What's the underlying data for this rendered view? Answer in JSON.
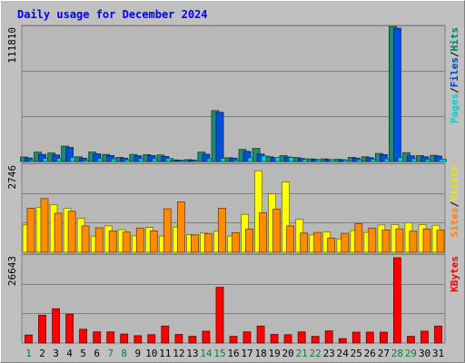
{
  "chart_data": {
    "type": "bar",
    "title": "Daily usage for December 2024",
    "categories": [
      "1",
      "2",
      "3",
      "4",
      "5",
      "6",
      "7",
      "8",
      "9",
      "10",
      "11",
      "12",
      "13",
      "14",
      "15",
      "16",
      "17",
      "18",
      "19",
      "20",
      "21",
      "22",
      "23",
      "24",
      "25",
      "26",
      "27",
      "28",
      "29",
      "30",
      "31"
    ],
    "weekend_days": [
      "1",
      "7",
      "8",
      "14",
      "15",
      "21",
      "22",
      "28",
      "29"
    ],
    "panels": [
      {
        "id": "hits-panel",
        "max_label": "111810",
        "ylim": [
          0,
          111810
        ],
        "legend": [
          {
            "text": "Pages",
            "color": "#00d0d0"
          },
          {
            "text": "/",
            "color": "#000000"
          },
          {
            "text": "Files",
            "color": "#0040c0"
          },
          {
            "text": "/",
            "color": "#000000"
          },
          {
            "text": "Hits",
            "color": "#008060"
          }
        ],
        "series": [
          {
            "name": "Hits",
            "color": "#1e8c6e",
            "values": [
              3800,
              8000,
              7200,
              13000,
              4000,
              8000,
              6000,
              3500,
              6000,
              5800,
              5500,
              1400,
              1600,
              8000,
              43000,
              3200,
              10200,
              11000,
              4000,
              5000,
              3200,
              2200,
              2200,
              1800,
              3500,
              4000,
              6800,
              114000,
              7500,
              5000,
              5200
            ]
          },
          {
            "name": "Files",
            "color": "#0050e0",
            "values": [
              3000,
              6000,
              5500,
              11800,
              2800,
              6500,
              5000,
              2800,
              4800,
              5000,
              4300,
              1200,
              1300,
              6200,
              41500,
              2800,
              8500,
              6300,
              3200,
              3800,
              2500,
              1800,
              1700,
              1500,
              2800,
              3200,
              5800,
              112500,
              4800,
              4000,
              4600
            ]
          },
          {
            "name": "Pages",
            "color": "#00d8d8",
            "values": [
              1300,
              2700,
              2600,
              3300,
              1200,
              2500,
              2200,
              1500,
              2400,
              2400,
              2500,
              800,
              600,
              2400,
              2600,
              1400,
              3200,
              4700,
              3500,
              3500,
              1800,
              1500,
              1500,
              1200,
              1600,
              1800,
              2200,
              3300,
              2400,
              1800,
              1900
            ]
          }
        ]
      },
      {
        "id": "visits-panel",
        "max_label": "2746",
        "ylim": [
          0,
          2746
        ],
        "legend": [
          {
            "text": "Sites",
            "color": "#ff8000"
          },
          {
            "text": "/",
            "color": "#000000"
          },
          {
            "text": "Visits",
            "color": "#e8e800"
          }
        ],
        "series": [
          {
            "name": "Visits",
            "color": "#ffff00",
            "values": [
              880,
              1450,
              1530,
              1420,
              1090,
              520,
              850,
              730,
              530,
              800,
              520,
              810,
              570,
              620,
              680,
              520,
              1220,
              2620,
              1880,
              2260,
              1060,
              560,
              650,
              430,
              700,
              640,
              880,
              890,
              950,
              890,
              870
            ]
          },
          {
            "name": "Sites",
            "color": "#ff8c00",
            "values": [
              1420,
              1730,
              1260,
              1320,
              850,
              790,
              690,
              650,
              780,
              690,
              1400,
              1620,
              560,
              600,
              1420,
              630,
              750,
              1270,
              1390,
              850,
              620,
              640,
              460,
              610,
              920,
              780,
              720,
              750,
              680,
              750,
              710
            ]
          }
        ]
      },
      {
        "id": "kbytes-panel",
        "max_label": "26643",
        "ylim": [
          0,
          26643
        ],
        "legend": [
          {
            "text": "KBytes",
            "color": "#ff0000"
          }
        ],
        "series": [
          {
            "name": "KBytes",
            "color": "#ff0000",
            "values": [
              2500,
              8700,
              10700,
              9000,
              4300,
              3500,
              3500,
              2800,
              2300,
              2600,
              5300,
              2700,
              2100,
              3700,
              17400,
              2100,
              3500,
              5300,
              2700,
              2600,
              3500,
              2100,
              3800,
              1400,
              3400,
              3400,
              3400,
              26643,
              2100,
              3700,
              5300
            ]
          }
        ]
      }
    ]
  }
}
